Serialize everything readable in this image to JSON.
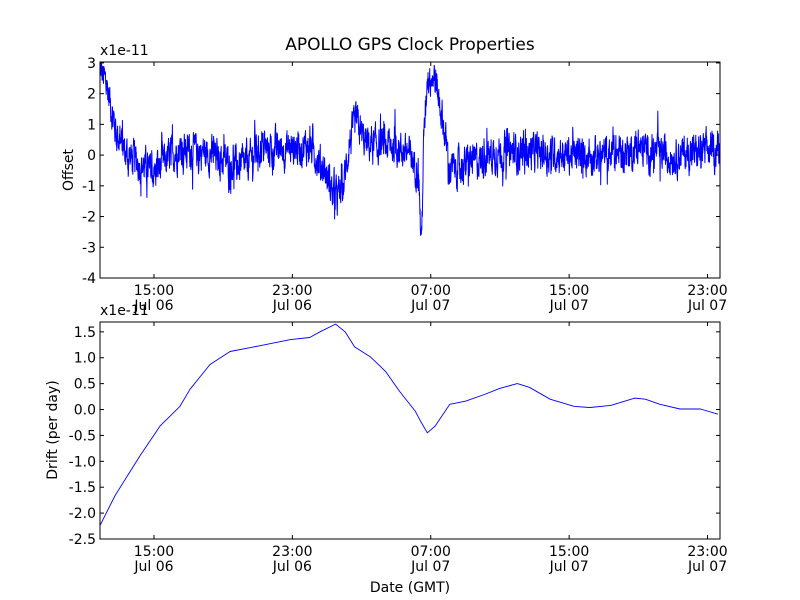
{
  "title": "APOLLO GPS Clock Properties",
  "chart_data": [
    {
      "type": "line",
      "name": "offset",
      "ylabel": "Offset",
      "xlabel": "",
      "offset_text": "x1e-11",
      "color": "#0000ff",
      "xlim_hours": [
        11.88,
        47.72
      ],
      "ylim": [
        -4,
        3.03
      ],
      "yticks": [
        3,
        2,
        1,
        0,
        -1,
        -2,
        -3,
        -4
      ],
      "ytick_labels": [
        "3",
        "2",
        "1",
        "0",
        "-1",
        "-2",
        "-3",
        "-4"
      ],
      "xticks_hours": [
        15,
        23,
        31,
        39,
        47
      ],
      "xtick_labels": [
        [
          "15:00",
          "Jul 06"
        ],
        [
          "23:00",
          "Jul 06"
        ],
        [
          "07:00",
          "Jul 07"
        ],
        [
          "15:00",
          "Jul 07"
        ],
        [
          "23:00",
          "Jul 07"
        ]
      ],
      "baseline": {
        "hours": [
          11.88,
          12.3,
          12.8,
          13.3,
          14.0,
          15.0,
          15.6,
          16.5,
          18.0,
          19.5,
          20.2,
          21.0,
          22.5,
          24.0,
          24.8,
          25.5,
          25.9,
          26.3,
          26.7,
          27.2,
          28.0,
          29.0,
          29.8,
          30.3,
          30.45,
          30.6,
          30.8,
          31.2,
          31.6,
          32.1,
          33.0,
          35.0,
          37.0,
          39.0,
          41.0,
          43.0,
          45.0,
          47.72
        ],
        "values": [
          2.8,
          2.2,
          0.8,
          0.1,
          -0.2,
          -0.6,
          -0.2,
          0.2,
          0.1,
          -0.3,
          -0.4,
          0.2,
          0.2,
          0.3,
          -0.4,
          -1.4,
          -1.2,
          0.4,
          1.1,
          0.4,
          0.3,
          0.3,
          0.0,
          -0.5,
          -3.0,
          0.5,
          2.6,
          2.6,
          1.5,
          -0.5,
          -0.3,
          0.1,
          0.1,
          0.0,
          0.0,
          0.2,
          0.0,
          0.2
        ]
      },
      "noise_amplitude": 0.45
    },
    {
      "type": "line",
      "name": "drift",
      "ylabel": "Drift (per day)",
      "xlabel": "Date (GMT)",
      "offset_text": "x1e-11",
      "color": "#0000ff",
      "xlim_hours": [
        11.88,
        47.72
      ],
      "ylim": [
        -2.5,
        1.69
      ],
      "yticks": [
        1.5,
        1.0,
        0.5,
        0.0,
        -0.5,
        -1.0,
        -1.5,
        -2.0,
        -2.5
      ],
      "ytick_labels": [
        "1.5",
        "1.0",
        "0.5",
        "0.0",
        "-0.5",
        "-1.0",
        "-1.5",
        "-2.0",
        "-2.5"
      ],
      "xticks_hours": [
        15,
        23,
        31,
        39,
        47
      ],
      "xtick_labels": [
        [
          "15:00",
          "Jul 06"
        ],
        [
          "23:00",
          "Jul 06"
        ],
        [
          "07:00",
          "Jul 07"
        ],
        [
          "15:00",
          "Jul 07"
        ],
        [
          "23:00",
          "Jul 07"
        ]
      ],
      "hours": [
        11.88,
        12.75,
        14.2,
        15.35,
        16.5,
        17.08,
        18.24,
        19.4,
        21.1,
        22.9,
        24.0,
        24.6,
        25.5,
        26.05,
        26.6,
        27.5,
        28.4,
        29.2,
        30.1,
        30.4,
        30.8,
        31.25,
        32.1,
        33.0,
        34.1,
        35.0,
        36.0,
        36.7,
        37.9,
        39.3,
        40.2,
        41.4,
        42.8,
        43.4,
        44.25,
        45.4,
        46.6,
        47.6
      ],
      "values": [
        -2.24,
        -1.66,
        -0.89,
        -0.32,
        0.06,
        0.39,
        0.87,
        1.12,
        1.23,
        1.35,
        1.39,
        1.5,
        1.65,
        1.5,
        1.21,
        1.02,
        0.73,
        0.35,
        -0.03,
        -0.22,
        -0.45,
        -0.32,
        0.1,
        0.16,
        0.29,
        0.41,
        0.5,
        0.43,
        0.2,
        0.06,
        0.04,
        0.08,
        0.22,
        0.2,
        0.1,
        0.01,
        0.01,
        -0.09
      ]
    }
  ]
}
